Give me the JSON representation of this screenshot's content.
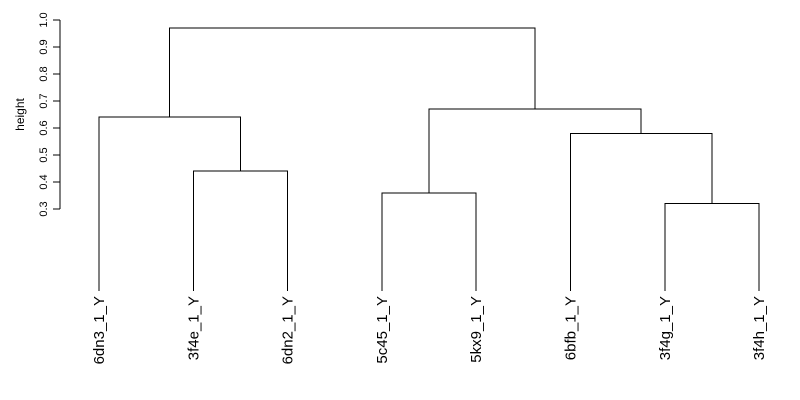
{
  "chart_data": {
    "type": "dendrogram",
    "title": "",
    "xlabel": "",
    "ylabel": "height",
    "ylim": [
      0.3,
      1.0
    ],
    "yticks": [
      0.3,
      0.4,
      0.5,
      0.6,
      0.7,
      0.8,
      0.9,
      1.0
    ],
    "ytick_labels": [
      "0.3",
      "0.4",
      "0.5",
      "0.6",
      "0.7",
      "0.8",
      "0.9",
      "1.0"
    ],
    "grid": false,
    "leaves": [
      "6dn3_1_Y",
      "3f4e_1_Y",
      "6dn2_1_Y",
      "5c45_1_Y",
      "5kx9_1_Y",
      "6bfb_1_Y",
      "3f4g_1_Y",
      "3f4h_1_Y"
    ],
    "merges": [
      {
        "left": "3f4g_1_Y",
        "right": "3f4h_1_Y",
        "height": 0.32
      },
      {
        "left": "5c45_1_Y",
        "right": "5kx9_1_Y",
        "height": 0.36
      },
      {
        "left": "3f4e_1_Y",
        "right": "6dn2_1_Y",
        "height": 0.44
      },
      {
        "left": "6bfb_1_Y",
        "right": "3f4g_1_Y|3f4h_1_Y",
        "height": 0.58
      },
      {
        "left": "6dn3_1_Y",
        "right": "3f4e_1_Y|6dn2_1_Y",
        "height": 0.64
      },
      {
        "left": "5c45_1_Y|5kx9_1_Y",
        "right": "6bfb_1_Y|3f4g_1_Y|3f4h_1_Y",
        "height": 0.67
      },
      {
        "left": "6dn3_1_Y|3f4e_1_Y|6dn2_1_Y",
        "right": "5c45_1_Y|5kx9_1_Y|6bfb_1_Y|3f4g_1_Y|3f4h_1_Y",
        "height": 0.97
      }
    ],
    "leaf_baseline": 0.0
  }
}
